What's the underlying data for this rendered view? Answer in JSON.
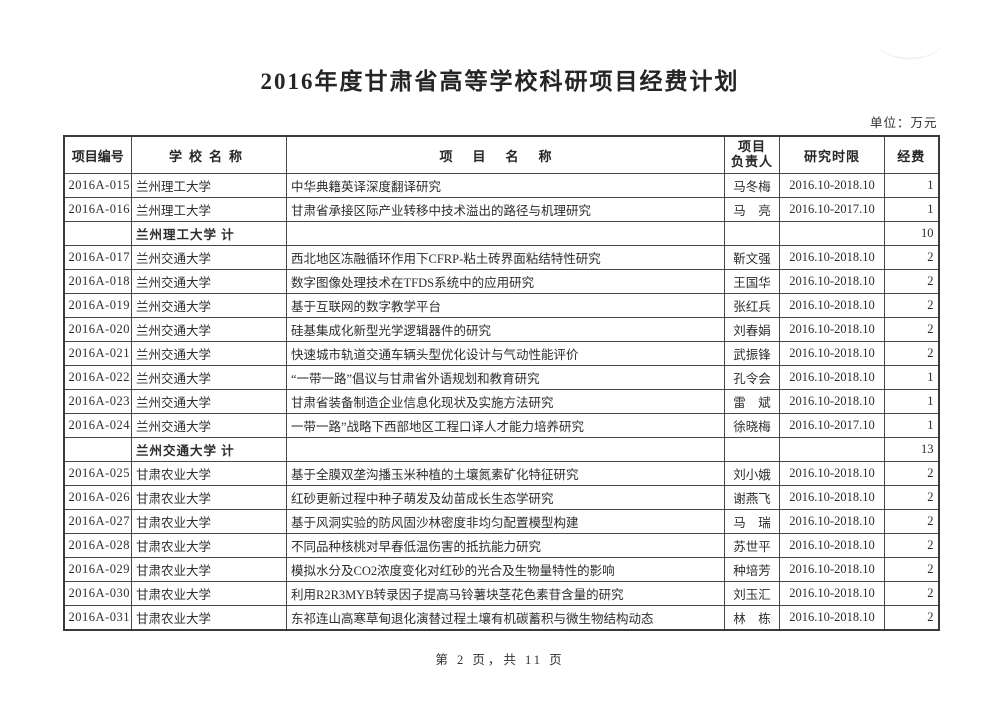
{
  "document": {
    "title": "2016年度甘肃省高等学校科研项目经费计划",
    "unit_note": "单位：万元",
    "page_footer": "第 2 页，共 11 页"
  },
  "table": {
    "headers": {
      "project_id": "项目编号",
      "school": "学校名称",
      "project": "项目名称",
      "pi_line1": "项目",
      "pi_line2": "负责人",
      "period": "研究时限",
      "fund": "经费"
    },
    "rows": [
      {
        "id": "2016A-015",
        "school": "兰州理工大学",
        "project": "中华典籍英译深度翻译研究",
        "pi": "马冬梅",
        "period": "2016.10-2018.10",
        "fund": "1",
        "subtotal": false
      },
      {
        "id": "2016A-016",
        "school": "兰州理工大学",
        "project": "甘肃省承接区际产业转移中技术溢出的路径与机理研究",
        "pi": "马　亮",
        "period": "2016.10-2017.10",
        "fund": "1",
        "subtotal": false
      },
      {
        "id": "",
        "school": "兰州理工大学 计",
        "project": "",
        "pi": "",
        "period": "",
        "fund": "10",
        "subtotal": true
      },
      {
        "id": "2016A-017",
        "school": "兰州交通大学",
        "project": "西北地区冻融循环作用下CFRP-粘土砖界面粘结特性研究",
        "pi": "靳文强",
        "period": "2016.10-2018.10",
        "fund": "2",
        "subtotal": false
      },
      {
        "id": "2016A-018",
        "school": "兰州交通大学",
        "project": "数字图像处理技术在TFDS系统中的应用研究",
        "pi": "王国华",
        "period": "2016.10-2018.10",
        "fund": "2",
        "subtotal": false
      },
      {
        "id": "2016A-019",
        "school": "兰州交通大学",
        "project": "基于互联网的数字教学平台",
        "pi": "张红兵",
        "period": "2016.10-2018.10",
        "fund": "2",
        "subtotal": false
      },
      {
        "id": "2016A-020",
        "school": "兰州交通大学",
        "project": "硅基集成化新型光学逻辑器件的研究",
        "pi": "刘春娟",
        "period": "2016.10-2018.10",
        "fund": "2",
        "subtotal": false
      },
      {
        "id": "2016A-021",
        "school": "兰州交通大学",
        "project": "快速城市轨道交通车辆头型优化设计与气动性能评价",
        "pi": "武振锋",
        "period": "2016.10-2018.10",
        "fund": "2",
        "subtotal": false
      },
      {
        "id": "2016A-022",
        "school": "兰州交通大学",
        "project": "“一带一路”倡议与甘肃省外语规划和教育研究",
        "pi": "孔令会",
        "period": "2016.10-2018.10",
        "fund": "1",
        "subtotal": false
      },
      {
        "id": "2016A-023",
        "school": "兰州交通大学",
        "project": "甘肃省装备制造企业信息化现状及实施方法研究",
        "pi": "雷　斌",
        "period": "2016.10-2018.10",
        "fund": "1",
        "subtotal": false
      },
      {
        "id": "2016A-024",
        "school": "兰州交通大学",
        "project": "一带一路”战略下西部地区工程口译人才能力培养研究",
        "pi": "徐晓梅",
        "period": "2016.10-2017.10",
        "fund": "1",
        "subtotal": false
      },
      {
        "id": "",
        "school": "兰州交通大学 计",
        "project": "",
        "pi": "",
        "period": "",
        "fund": "13",
        "subtotal": true
      },
      {
        "id": "2016A-025",
        "school": "甘肃农业大学",
        "project": "基于全膜双垄沟播玉米种植的土壤氮素矿化特征研究",
        "pi": "刘小娥",
        "period": "2016.10-2018.10",
        "fund": "2",
        "subtotal": false
      },
      {
        "id": "2016A-026",
        "school": "甘肃农业大学",
        "project": "红砂更新过程中种子萌发及幼苗成长生态学研究",
        "pi": "谢燕飞",
        "period": "2016.10-2018.10",
        "fund": "2",
        "subtotal": false
      },
      {
        "id": "2016A-027",
        "school": "甘肃农业大学",
        "project": "基于风洞实验的防风固沙林密度非均匀配置模型构建",
        "pi": "马　瑞",
        "period": "2016.10-2018.10",
        "fund": "2",
        "subtotal": false
      },
      {
        "id": "2016A-028",
        "school": "甘肃农业大学",
        "project": "不同品种核桃对早春低温伤害的抵抗能力研究",
        "pi": "苏世平",
        "period": "2016.10-2018.10",
        "fund": "2",
        "subtotal": false
      },
      {
        "id": "2016A-029",
        "school": "甘肃农业大学",
        "project": "模拟水分及CO2浓度变化对红砂的光合及生物量特性的影响",
        "pi": "种培芳",
        "period": "2016.10-2018.10",
        "fund": "2",
        "subtotal": false
      },
      {
        "id": "2016A-030",
        "school": "甘肃农业大学",
        "project": "利用R2R3MYB转录因子提高马铃薯块茎花色素苷含量的研究",
        "pi": "刘玉汇",
        "period": "2016.10-2018.10",
        "fund": "2",
        "subtotal": false
      },
      {
        "id": "2016A-031",
        "school": "甘肃农业大学",
        "project": "东祁连山高寒草甸退化演替过程土壤有机碳蓄积与微生物结构动态",
        "pi": "林　栋",
        "period": "2016.10-2018.10",
        "fund": "2",
        "subtotal": false
      }
    ]
  }
}
